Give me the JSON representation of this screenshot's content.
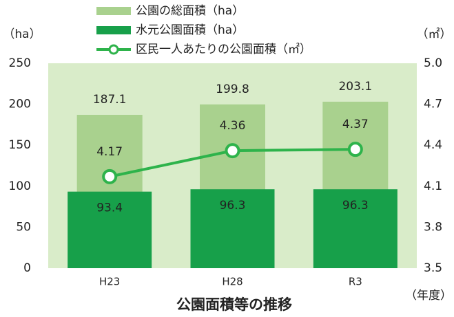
{
  "chart_data": {
    "type": "bar",
    "title": "公園面積等の推移",
    "y_label": "（ha）",
    "y2_label": "（㎡）",
    "x_label": "（年度）",
    "categories": [
      "H23",
      "H28",
      "R3"
    ],
    "series": [
      {
        "name": "公園の総面積（ha）",
        "type": "bar",
        "color": "#a9d18e",
        "values": [
          187.1,
          199.8,
          203.1
        ]
      },
      {
        "name": "水元公園面積（ha）",
        "type": "bar",
        "color": "#17a04a",
        "values": [
          93.4,
          96.3,
          96.3
        ]
      },
      {
        "name": "区民一人あたりの公園面積（㎡）",
        "type": "line",
        "axis": "y2",
        "color": "#2eb34b",
        "values": [
          4.17,
          4.36,
          4.37
        ]
      }
    ],
    "ylim": [
      0,
      250
    ],
    "yticks": [
      0,
      50,
      100,
      150,
      200,
      250
    ],
    "y2lim": [
      3.5,
      5
    ],
    "y2ticks": [
      3.5,
      3.8,
      4.1,
      4.4,
      4.7,
      {
        "value": 5,
        "label": "5.0"
      }
    ],
    "background": "#d9ecc9"
  }
}
